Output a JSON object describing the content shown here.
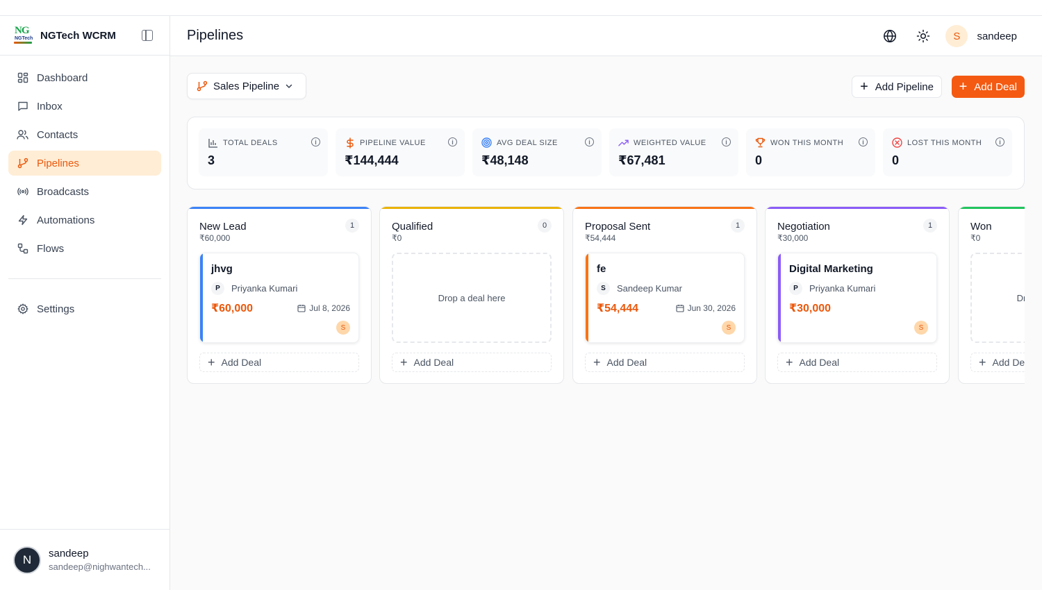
{
  "app": {
    "brand_name": "NGTech WCRM",
    "logo_text": "NG",
    "logo_sub": "NGTech"
  },
  "sidebar": {
    "items": [
      {
        "label": "Dashboard",
        "icon": "dashboard-icon",
        "active": false
      },
      {
        "label": "Inbox",
        "icon": "message-square-icon",
        "active": false
      },
      {
        "label": "Contacts",
        "icon": "users-icon",
        "active": false
      },
      {
        "label": "Pipelines",
        "icon": "git-branch-icon",
        "active": true
      },
      {
        "label": "Broadcasts",
        "icon": "radio-icon",
        "active": false
      },
      {
        "label": "Automations",
        "icon": "zap-icon",
        "active": false
      },
      {
        "label": "Flows",
        "icon": "workflow-icon",
        "active": false
      }
    ],
    "settings_label": "Settings",
    "user": {
      "initial": "N",
      "name": "sandeep",
      "email": "sandeep@nighwantech..."
    }
  },
  "header": {
    "title": "Pipelines",
    "avatar_initial": "S",
    "username": "sandeep"
  },
  "toolbar": {
    "pipeline_selected": "Sales Pipeline",
    "add_pipeline_label": "Add Pipeline",
    "add_deal_label": "Add Deal"
  },
  "stats": [
    {
      "label": "TOTAL DEALS",
      "value": "3",
      "icon": "bar-chart-icon"
    },
    {
      "label": "PIPELINE VALUE",
      "value": "₹144,444",
      "icon": "dollar-icon"
    },
    {
      "label": "AVG DEAL SIZE",
      "value": "₹48,148",
      "icon": "target-icon"
    },
    {
      "label": "WEIGHTED VALUE",
      "value": "₹67,481",
      "icon": "trending-up-icon"
    },
    {
      "label": "WON THIS MONTH",
      "value": "0",
      "icon": "trophy-icon"
    },
    {
      "label": "LOST THIS MONTH",
      "value": "0",
      "icon": "x-circle-icon"
    }
  ],
  "colors": {
    "accent": "#f45a12",
    "new_lead": "#3b82f6",
    "qualified": "#eab308",
    "proposal": "#f97316",
    "negotiation": "#8b5cf6",
    "won": "#22c55e"
  },
  "columns": [
    {
      "title": "New Lead",
      "amount": "₹60,000",
      "count": "1",
      "deal": {
        "title": "jhvg",
        "person_initial": "P",
        "person": "Priyanka Kumari",
        "value": "₹60,000",
        "date": "Jul 8, 2026",
        "owner_initial": "S"
      },
      "add_label": "Add Deal"
    },
    {
      "title": "Qualified",
      "amount": "₹0",
      "count": "0",
      "drop_label": "Drop a deal here",
      "add_label": "Add Deal"
    },
    {
      "title": "Proposal Sent",
      "amount": "₹54,444",
      "count": "1",
      "deal": {
        "title": "fe",
        "person_initial": "S",
        "person": "Sandeep Kumar",
        "value": "₹54,444",
        "date": "Jun 30, 2026",
        "owner_initial": "S"
      },
      "add_label": "Add Deal"
    },
    {
      "title": "Negotiation",
      "amount": "₹30,000",
      "count": "1",
      "deal": {
        "title": "Digital Marketing",
        "person_initial": "P",
        "person": "Priyanka Kumari",
        "value": "₹30,000",
        "owner_initial": "S"
      },
      "add_label": "Add Deal"
    },
    {
      "title": "Won",
      "amount": "₹0",
      "drop_label": "Drop a deal here",
      "add_label": "Add Deal"
    }
  ]
}
